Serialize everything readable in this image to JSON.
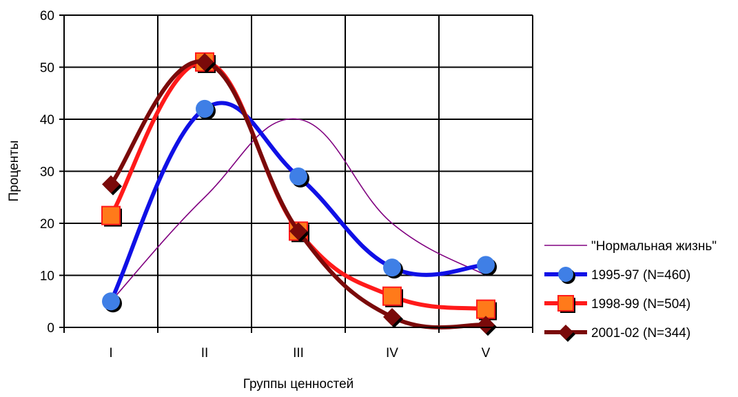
{
  "chart_data": {
    "type": "line",
    "categories": [
      "I",
      "II",
      "III",
      "IV",
      "V"
    ],
    "xlabel": "Группы ценностей",
    "ylabel": "Проценты",
    "ylim": [
      0,
      60
    ],
    "yticks": [
      "0",
      "10",
      "20",
      "30",
      "40",
      "50",
      "60"
    ],
    "grid": true,
    "legend_position": "right",
    "series": [
      {
        "name": "\"Нормальная жизнь\"",
        "values": [
          5,
          25,
          40,
          20,
          10
        ],
        "color": "#800080",
        "marker": "none",
        "style": "thin"
      },
      {
        "name": "1995-97 (N=460)",
        "values": [
          5,
          42,
          29,
          11.5,
          12
        ],
        "color": "#1010e6",
        "marker": "circle",
        "marker_color": "#3f7fe6",
        "style": "thick"
      },
      {
        "name": "1998-99 (N=504)",
        "values": [
          21.5,
          51,
          18.5,
          6,
          3.5
        ],
        "color": "#ff1a1a",
        "marker": "square",
        "marker_color": "#ff7a1a",
        "style": "thick"
      },
      {
        "name": "2001-02 (N=344)",
        "values": [
          27.5,
          51,
          18.5,
          2,
          0.5
        ],
        "color": "#7a0a0a",
        "marker": "diamond",
        "marker_color": "#7a0a0a",
        "style": "thick"
      }
    ]
  }
}
